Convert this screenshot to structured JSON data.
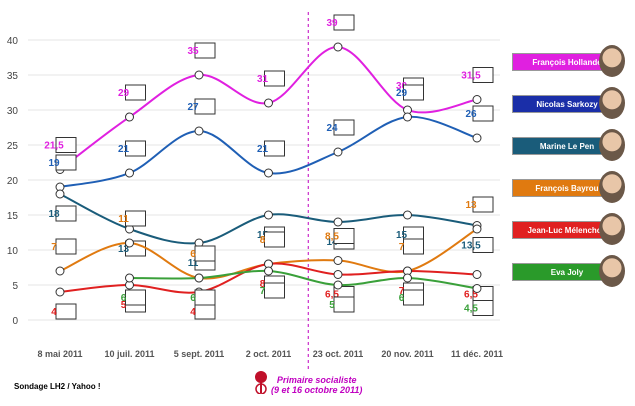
{
  "chart_data": {
    "type": "line",
    "x": [
      "8 mai 2011",
      "10 juil. 2011",
      "5 sept. 2011",
      "2 oct. 2011",
      "23 oct. 2011",
      "20 nov. 2011",
      "11 déc. 2011"
    ],
    "ylim": [
      0,
      40
    ],
    "yticks": [
      0,
      5,
      10,
      15,
      20,
      25,
      30,
      35,
      40
    ],
    "grid": true,
    "legend_position": "right",
    "series": [
      {
        "name": "François Hollande",
        "color": "#e020e0",
        "values": [
          21.5,
          29,
          35,
          31,
          39,
          30,
          31.5
        ],
        "labels": [
          "21,5",
          "29",
          "35",
          "31",
          "39",
          "30",
          "31,5"
        ]
      },
      {
        "name": "Nicolas Sarkozy",
        "color": "#1f5fb5",
        "values": [
          19,
          21,
          27,
          21,
          24,
          29,
          26
        ],
        "labels": [
          "19",
          "21",
          "27",
          "21",
          "24",
          "29",
          "26"
        ]
      },
      {
        "name": "Marine Le Pen",
        "color": "#1a5c7a",
        "values": [
          18,
          13,
          11,
          15,
          14,
          15,
          13.5
        ],
        "labels": [
          "18",
          "13",
          "11",
          "15",
          "14",
          "15",
          "13,5"
        ]
      },
      {
        "name": "François Bayrou",
        "color": "#e07a10",
        "values": [
          7,
          11,
          6,
          8,
          8.5,
          7,
          13
        ],
        "labels": [
          "7",
          "11",
          "6",
          "8",
          "8,5",
          "7",
          "13"
        ]
      },
      {
        "name": "Jean-Luc Mélenchon",
        "color": "#e02020",
        "values": [
          4,
          5,
          4,
          8,
          6.5,
          7,
          6.5
        ],
        "labels": [
          "4",
          "5",
          "4",
          "8",
          "6,5",
          "7",
          "6,5"
        ]
      },
      {
        "name": "Eva Joly",
        "color": "#3aa03a",
        "values": [
          null,
          6,
          6,
          7,
          5,
          6,
          4.5
        ],
        "labels": [
          "",
          "6",
          "6",
          "7",
          "5",
          "6",
          "4,5"
        ]
      }
    ],
    "annotation": {
      "x_between": [
        "2 oct. 2011",
        "23 oct. 2011"
      ],
      "line1": "Primaire socialiste",
      "line2": "(9 et 16 octobre 2011)",
      "color": "#c000c0"
    }
  },
  "legend": [
    {
      "label": "François Hollande",
      "bg": "#e020e0"
    },
    {
      "label": "Nicolas Sarkozy",
      "bg": "#1a2ea8"
    },
    {
      "label": "Marine Le Pen",
      "bg": "#1a5c7a"
    },
    {
      "label": "François Bayrou",
      "bg": "#e07a10"
    },
    {
      "label": "Jean-Luc Mélenchon",
      "bg": "#e02020"
    },
    {
      "label": "Eva Joly",
      "bg": "#2a9a2a"
    }
  ],
  "source": "Sondage LH2 / Yahoo !"
}
